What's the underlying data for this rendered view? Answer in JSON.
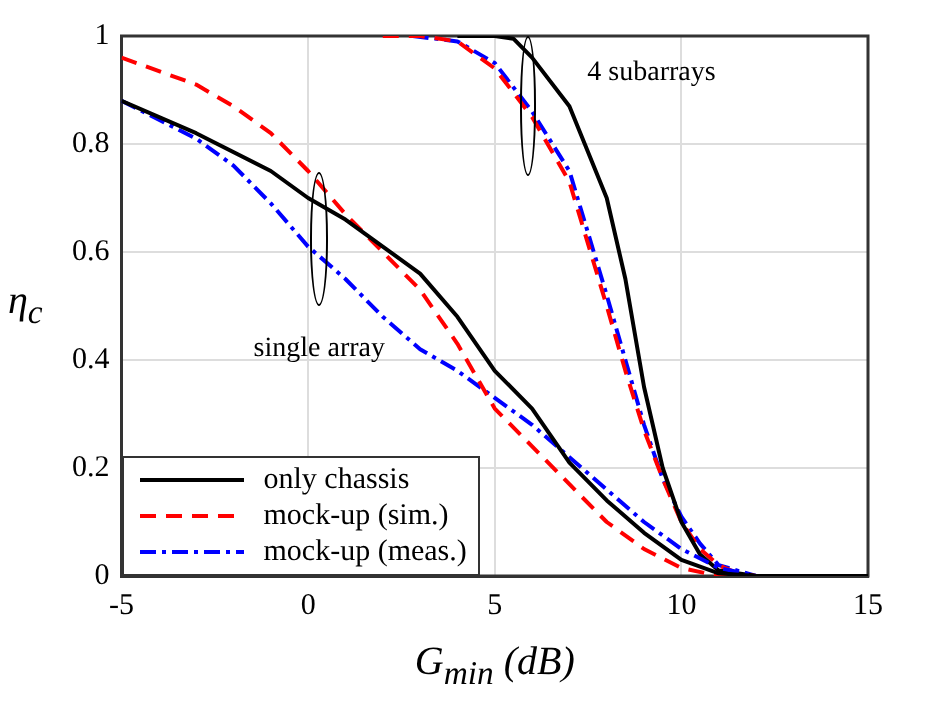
{
  "chart_data": {
    "type": "line",
    "xlabel": "G$_{min}$ (dB)",
    "ylabel": "η$_{c}$",
    "xlim": [
      -5,
      15
    ],
    "ylim": [
      0,
      1
    ],
    "xticks": [
      -5,
      0,
      5,
      10,
      15
    ],
    "yticks": [
      0,
      0.2,
      0.4,
      0.6,
      0.8,
      1
    ],
    "grid": true,
    "legend": "bottom left",
    "marker": "none",
    "annotations": [
      "single array",
      "4 subarrays"
    ],
    "series": [
      {
        "name": "only chassis",
        "color": "#000000",
        "line_style": "solid",
        "x": [
          -5,
          -3,
          -1,
          0,
          1,
          2,
          3,
          4,
          5,
          6,
          7,
          8,
          9,
          10,
          11,
          12,
          15
        ],
        "values": [
          0.88,
          0.82,
          0.75,
          0.7,
          0.66,
          0.61,
          0.56,
          0.48,
          0.38,
          0.31,
          0.21,
          0.14,
          0.08,
          0.03,
          0.005,
          0,
          0
        ]
      },
      {
        "name": "mock-up (sim.)",
        "color": "#ff0000",
        "line_style": "dashed",
        "x": [
          -5,
          -3,
          -2,
          -1,
          0,
          1,
          2,
          3,
          4,
          5,
          6,
          7,
          8,
          9,
          10,
          11,
          12,
          15
        ],
        "values": [
          0.96,
          0.91,
          0.87,
          0.82,
          0.75,
          0.67,
          0.6,
          0.53,
          0.43,
          0.31,
          0.24,
          0.17,
          0.1,
          0.05,
          0.015,
          0,
          0,
          0
        ]
      },
      {
        "name": "mock-up (meas.)",
        "color": "#0000ff",
        "line_style": "dashdot",
        "x": [
          -5,
          -3,
          -2,
          -1,
          0,
          1,
          2,
          3,
          4,
          5,
          6,
          7,
          8,
          9,
          10,
          11,
          12,
          15
        ],
        "values": [
          0.88,
          0.81,
          0.76,
          0.69,
          0.61,
          0.55,
          0.48,
          0.42,
          0.38,
          0.33,
          0.28,
          0.22,
          0.16,
          0.1,
          0.05,
          0.015,
          0,
          0
        ]
      },
      {
        "color": "#000000",
        "line_style": "solid",
        "x": [
          4,
          5,
          5.5,
          6,
          7,
          8,
          8.5,
          9,
          9.5,
          10,
          10.5,
          11,
          12,
          15
        ],
        "values": [
          1,
          1,
          0.995,
          0.96,
          0.87,
          0.7,
          0.55,
          0.35,
          0.2,
          0.1,
          0.04,
          0.01,
          0,
          0
        ]
      },
      {
        "color": "#ff0000",
        "line_style": "dashed",
        "x": [
          2,
          3,
          4,
          5,
          6,
          7,
          8,
          8.5,
          9,
          9.5,
          10,
          10.5,
          11,
          11.5,
          12,
          15
        ],
        "values": [
          1,
          1,
          0.99,
          0.94,
          0.85,
          0.73,
          0.5,
          0.38,
          0.27,
          0.18,
          0.1,
          0.05,
          0.02,
          0.005,
          0,
          0
        ]
      },
      {
        "color": "#0000ff",
        "line_style": "dashdot",
        "x": [
          2.8,
          4,
          5,
          6,
          7,
          8,
          8.5,
          9,
          9.5,
          10,
          10.5,
          11,
          12,
          15
        ],
        "values": [
          1,
          0.99,
          0.95,
          0.86,
          0.75,
          0.52,
          0.4,
          0.28,
          0.18,
          0.11,
          0.06,
          0.02,
          0,
          0
        ]
      }
    ]
  }
}
